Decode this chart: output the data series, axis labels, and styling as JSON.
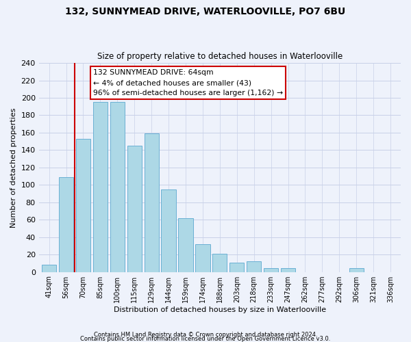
{
  "title": "132, SUNNYMEAD DRIVE, WATERLOOVILLE, PO7 6BU",
  "subtitle": "Size of property relative to detached houses in Waterlooville",
  "xlabel": "Distribution of detached houses by size in Waterlooville",
  "ylabel": "Number of detached properties",
  "bar_labels": [
    "41sqm",
    "56sqm",
    "70sqm",
    "85sqm",
    "100sqm",
    "115sqm",
    "129sqm",
    "144sqm",
    "159sqm",
    "174sqm",
    "188sqm",
    "203sqm",
    "218sqm",
    "233sqm",
    "247sqm",
    "262sqm",
    "277sqm",
    "292sqm",
    "306sqm",
    "321sqm",
    "336sqm"
  ],
  "bar_heights": [
    8,
    109,
    153,
    195,
    195,
    145,
    159,
    95,
    62,
    32,
    21,
    11,
    12,
    4,
    4,
    0,
    0,
    0,
    4,
    0,
    0
  ],
  "bar_color": "#add8e6",
  "bar_edge_color": "#6ab0d4",
  "highlight_line_color": "#cc0000",
  "annotation_title": "132 SUNNYMEAD DRIVE: 64sqm",
  "annotation_line1": "← 4% of detached houses are smaller (43)",
  "annotation_line2": "96% of semi-detached houses are larger (1,162) →",
  "annotation_box_color": "#ffffff",
  "annotation_box_edge": "#cc0000",
  "ylim": [
    0,
    240
  ],
  "yticks": [
    0,
    20,
    40,
    60,
    80,
    100,
    120,
    140,
    160,
    180,
    200,
    220,
    240
  ],
  "footer1": "Contains HM Land Registry data © Crown copyright and database right 2024.",
  "footer2": "Contains public sector information licensed under the Open Government Licence v3.0.",
  "bg_color": "#eef2fb",
  "grid_color": "#c8d0e8"
}
